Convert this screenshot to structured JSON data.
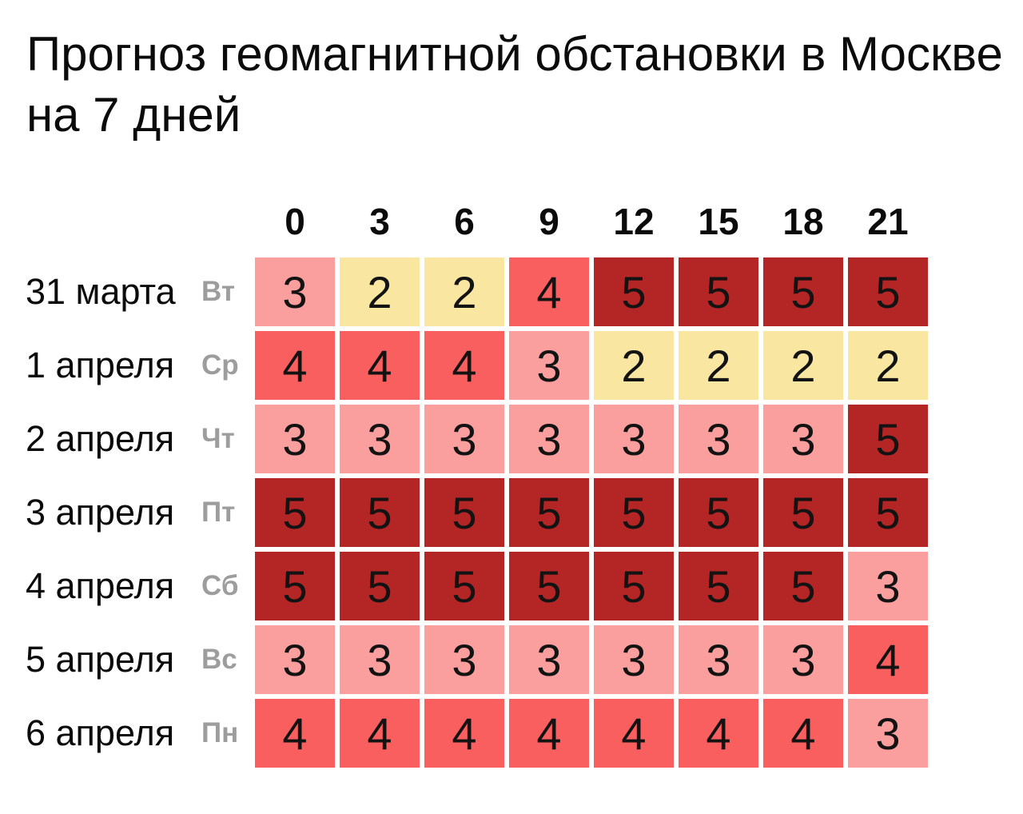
{
  "title": {
    "line1": "Прогноз геомагнитной обстановки в Москве",
    "line2": "на 7 дней",
    "full": "Прогноз геомагнитной обстановки в Москве на 7 дней"
  },
  "chart_data": {
    "type": "heatmap",
    "title": "Прогноз геомагнитной обстановки в Москве на 7 дней",
    "x": [
      "0",
      "3",
      "6",
      "9",
      "12",
      "15",
      "18",
      "21"
    ],
    "rows": [
      {
        "date": "31 марта",
        "day": "Вт",
        "values": [
          3,
          2,
          2,
          4,
          5,
          5,
          5,
          5
        ]
      },
      {
        "date": "1 апреля",
        "day": "Ср",
        "values": [
          4,
          4,
          4,
          3,
          2,
          2,
          2,
          2
        ]
      },
      {
        "date": "2 апреля",
        "day": "Чт",
        "values": [
          3,
          3,
          3,
          3,
          3,
          3,
          3,
          5
        ]
      },
      {
        "date": "3 апреля",
        "day": "Пт",
        "values": [
          5,
          5,
          5,
          5,
          5,
          5,
          5,
          5
        ]
      },
      {
        "date": "4 апреля",
        "day": "Сб",
        "values": [
          5,
          5,
          5,
          5,
          5,
          5,
          5,
          3
        ]
      },
      {
        "date": "5 апреля",
        "day": "Вс",
        "values": [
          3,
          3,
          3,
          3,
          3,
          3,
          3,
          4
        ]
      },
      {
        "date": "6 апреля",
        "day": "Пн",
        "values": [
          4,
          4,
          4,
          4,
          4,
          4,
          4,
          3
        ]
      }
    ],
    "value_colors": {
      "2": "#F8E6A1",
      "3": "#FA9E9E",
      "4": "#F95F5F",
      "5": "#B42525"
    },
    "legend_position": "none",
    "grid": false
  },
  "colors": {
    "background": "#FFFFFF",
    "title_text": "#0B0B0B",
    "weekday_text": "#9D9D9D",
    "cell_text": "#131313"
  }
}
